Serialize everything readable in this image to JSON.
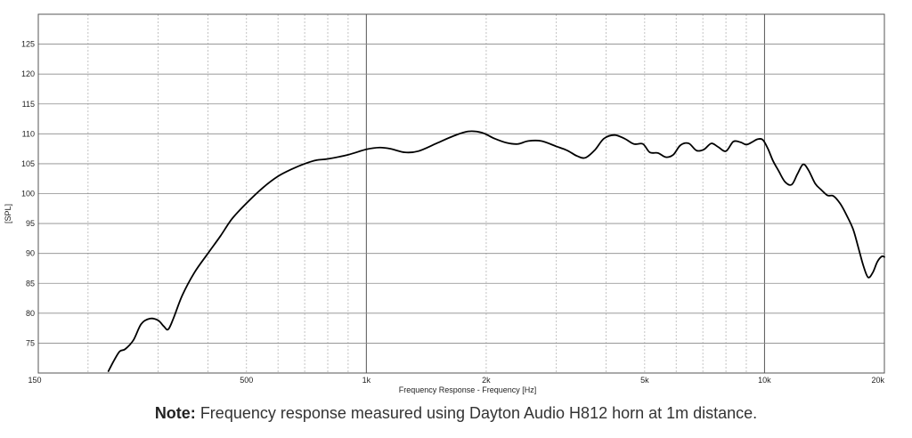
{
  "chart_data": {
    "type": "line",
    "title": "",
    "xlabel": "Frequency Response - Frequency [Hz]",
    "ylabel": "[SPL]",
    "xscale": "log",
    "xlim": [
      150,
      20000
    ],
    "ylim": [
      70,
      130
    ],
    "x_tick_labels": [
      {
        "value": 150,
        "label": "150"
      },
      {
        "value": 500,
        "label": "500"
      },
      {
        "value": 1000,
        "label": "1k"
      },
      {
        "value": 2000,
        "label": "2k"
      },
      {
        "value": 5000,
        "label": "5k"
      },
      {
        "value": 10000,
        "label": "10k"
      },
      {
        "value": 20000,
        "label": "20k"
      }
    ],
    "y_ticks": [
      75,
      80,
      85,
      90,
      95,
      100,
      105,
      110,
      115,
      120,
      125
    ],
    "grid": true,
    "series": [
      {
        "name": "",
        "color": "#000000",
        "x": [
          225,
          232,
          240,
          248,
          260,
          272,
          286,
          300,
          310,
          318,
          328,
          345,
          370,
          400,
          430,
          460,
          500,
          550,
          600,
          650,
          700,
          750,
          800,
          900,
          1000,
          1080,
          1150,
          1250,
          1350,
          1500,
          1650,
          1800,
          1950,
          2100,
          2250,
          2400,
          2550,
          2750,
          3000,
          3200,
          3380,
          3550,
          3750,
          3950,
          4200,
          4450,
          4700,
          4950,
          5150,
          5400,
          5650,
          5900,
          6150,
          6450,
          6750,
          7050,
          7350,
          7650,
          8000,
          8350,
          8700,
          9000,
          9300,
          9600,
          9900,
          10200,
          10500,
          10850,
          11250,
          11700,
          12100,
          12500,
          12900,
          13400,
          13900,
          14400,
          14900,
          15500,
          16100,
          16700,
          17200,
          17700,
          18200,
          18700,
          19200,
          19700,
          20000
        ],
        "y": [
          70.3,
          72.0,
          73.6,
          74.0,
          75.5,
          78.2,
          79.1,
          78.8,
          77.8,
          77.3,
          79.2,
          83.0,
          86.8,
          90.0,
          92.9,
          95.8,
          98.4,
          101.0,
          102.9,
          104.1,
          105.0,
          105.6,
          105.8,
          106.5,
          107.4,
          107.7,
          107.5,
          106.9,
          107.1,
          108.4,
          109.6,
          110.4,
          110.2,
          109.2,
          108.5,
          108.3,
          108.8,
          108.8,
          107.9,
          107.2,
          106.3,
          106.0,
          107.3,
          109.2,
          109.8,
          109.2,
          108.3,
          108.3,
          106.9,
          106.8,
          106.1,
          106.5,
          108.1,
          108.4,
          107.2,
          107.4,
          108.4,
          107.8,
          107.1,
          108.7,
          108.6,
          108.2,
          108.6,
          109.1,
          109.0,
          107.5,
          105.5,
          103.8,
          102.0,
          101.5,
          103.3,
          104.9,
          103.9,
          101.7,
          100.6,
          99.7,
          99.6,
          98.3,
          96.3,
          94.0,
          91.0,
          88.0,
          86.0,
          86.8,
          88.6,
          89.5,
          89.4
        ]
      }
    ]
  },
  "caption": {
    "bold": "Note:",
    "text": " Frequency response measured using Dayton Audio H812 horn at 1m distance."
  }
}
